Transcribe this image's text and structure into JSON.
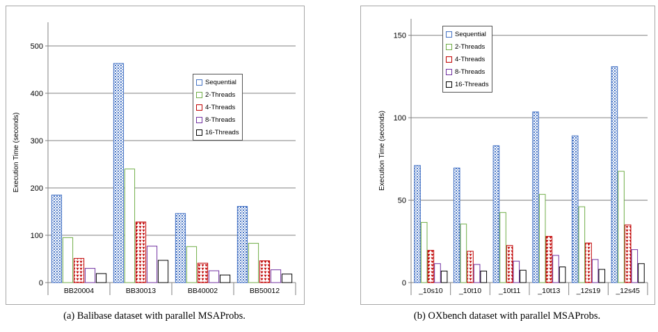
{
  "colors": {
    "Sequential": "#4472c4",
    "2-Threads": "#70ad47",
    "4-Threads": "#c00000",
    "8-Threads": "#7030a0",
    "16-Threads": "#000000",
    "grid": "#808080",
    "axis": "#808080"
  },
  "captions": {
    "a": "(a) Balibase dataset with parallel MSAProbs.",
    "b": "(b) OXbench dataset with parallel MSAProbs."
  },
  "chart_data": [
    {
      "type": "bar",
      "ylabel": "Execution Time (seconds)",
      "xlabel": "",
      "ylim": [
        0,
        550
      ],
      "yticks": [
        0,
        100,
        200,
        300,
        400,
        500
      ],
      "grid": true,
      "legend_position": "right",
      "categories": [
        "BB20004",
        "BB30013",
        "BB40002",
        "BB50012"
      ],
      "series": [
        {
          "name": "Sequential",
          "values": [
            185,
            463,
            146,
            161
          ]
        },
        {
          "name": "2-Threads",
          "values": [
            95,
            240,
            76,
            83
          ]
        },
        {
          "name": "4-Threads",
          "values": [
            51,
            128,
            41,
            46
          ]
        },
        {
          "name": "8-Threads",
          "values": [
            30,
            77,
            25,
            27
          ]
        },
        {
          "name": "16-Threads",
          "values": [
            19,
            47,
            16,
            18
          ]
        }
      ]
    },
    {
      "type": "bar",
      "ylabel": "Execution Time (seconds)",
      "xlabel": "",
      "ylim": [
        0,
        160
      ],
      "yticks": [
        0,
        50,
        100,
        150
      ],
      "grid": true,
      "legend_position": "top-left",
      "categories": [
        "_10s10",
        "_10t10",
        "_10t11",
        "_10t13",
        "_12s19",
        "_12s45"
      ],
      "series": [
        {
          "name": "Sequential",
          "values": [
            71,
            69.5,
            83,
            103.5,
            89,
            131
          ]
        },
        {
          "name": "2-Threads",
          "values": [
            36.5,
            35.5,
            42.5,
            53.5,
            46,
            67.5
          ]
        },
        {
          "name": "4-Threads",
          "values": [
            19.5,
            19,
            22.5,
            28,
            24,
            35
          ]
        },
        {
          "name": "8-Threads",
          "values": [
            11.5,
            11,
            13,
            16.5,
            14,
            20
          ]
        },
        {
          "name": "16-Threads",
          "values": [
            7,
            7,
            7.5,
            9.5,
            8,
            11.5
          ]
        }
      ]
    }
  ]
}
